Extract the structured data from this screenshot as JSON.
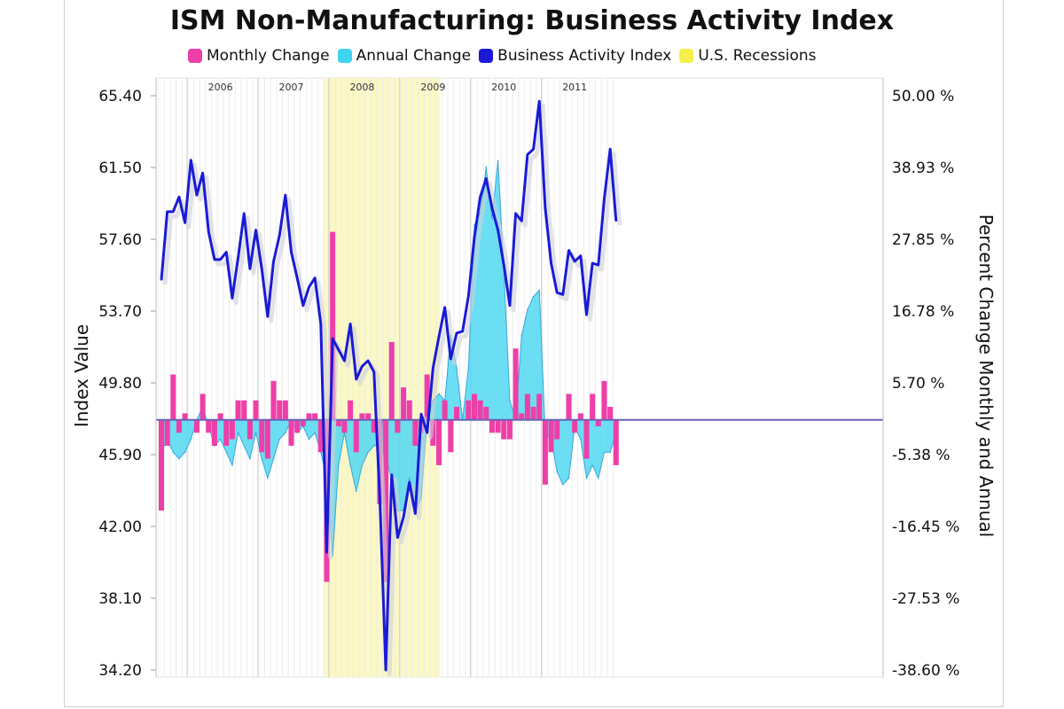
{
  "chart_data": {
    "type": "bar+area+line",
    "title": "ISM Non-Manufacturing: Business Activity Index",
    "legend": [
      {
        "name": "Monthly Change",
        "color": "#ee3fa8"
      },
      {
        "name": "Annual Change",
        "color": "#3ed4f0"
      },
      {
        "name": "Business Activity Index",
        "color": "#1a1ad6"
      },
      {
        "name": "U.S. Recessions",
        "color": "#f5f04a"
      }
    ],
    "legend_position": "top",
    "ylabel_left": "Index Value",
    "ylabel_right": "Percent Change Monthly and Annual",
    "left_axis": {
      "min": 34.2,
      "max": 65.4,
      "ticks": [
        "34.20",
        "38.10",
        "42.00",
        "45.90",
        "49.80",
        "53.70",
        "57.60",
        "61.50",
        "65.40"
      ]
    },
    "right_axis": {
      "min": -38.6,
      "max": 50.0,
      "ticks": [
        "-38.60 %",
        "-27.53 %",
        "-16.45 %",
        "-5.38 %",
        "5.70 %",
        "16.78 %",
        "27.85 %",
        "38.93 %",
        "50.00 %"
      ]
    },
    "x_start": "2005-08",
    "year_labels": [
      {
        "label": "2006",
        "month_index": 10
      },
      {
        "label": "2007",
        "month_index": 22
      },
      {
        "label": "2008",
        "month_index": 34
      },
      {
        "label": "2009",
        "month_index": 46
      },
      {
        "label": "2010",
        "month_index": 58
      },
      {
        "label": "2011",
        "month_index": 70
      }
    ],
    "recession": {
      "start_index": 28,
      "end_index": 47
    },
    "grid": true,
    "series": [
      {
        "name": "Business Activity Index",
        "axis": "left",
        "values": [
          55.4,
          59.1,
          59.1,
          59.9,
          58.5,
          61.9,
          60.0,
          61.2,
          58.0,
          56.5,
          56.5,
          56.9,
          54.4,
          56.6,
          59.0,
          56.0,
          58.1,
          56.0,
          53.4,
          56.4,
          57.8,
          60.0,
          56.9,
          55.5,
          54.0,
          55.0,
          55.5,
          53.0,
          40.6,
          52.2,
          51.6,
          51.0,
          53.0,
          50.0,
          50.7,
          51.0,
          50.4,
          43.5,
          34.2,
          44.8,
          41.4,
          42.5,
          44.4,
          42.7,
          48.1,
          47.1,
          50.6,
          52.3,
          53.9,
          51.1,
          52.5,
          52.6,
          54.5,
          57.7,
          59.9,
          60.9,
          59.3,
          58.1,
          56.2,
          54.0,
          59.0,
          58.6,
          62.2,
          62.5,
          65.1,
          59.3,
          56.3,
          54.7,
          54.6,
          57.0,
          56.4,
          56.7,
          53.5,
          56.3,
          56.2,
          59.8,
          62.5,
          58.6
        ]
      },
      {
        "name": "Monthly Change",
        "axis": "right",
        "values": [
          -14,
          -4,
          7,
          -2,
          1,
          0,
          -2,
          4,
          -2,
          -4,
          1,
          -4,
          -3,
          3,
          3,
          -3,
          3,
          -5,
          -6,
          6,
          3,
          3,
          -4,
          -2,
          -1,
          1,
          1,
          -5,
          -25,
          29,
          -1,
          -2,
          3,
          -5,
          1,
          1,
          -2,
          -13,
          -25,
          12,
          -2,
          5,
          3,
          -4,
          -2,
          7,
          -4,
          -7,
          3,
          -5,
          2,
          0,
          3,
          4,
          3,
          2,
          -2,
          -2,
          -3,
          -3,
          11,
          1,
          4,
          2,
          4,
          -10,
          -5,
          -3,
          0,
          4,
          -2,
          1,
          -6,
          4,
          -1,
          6,
          2,
          -7
        ]
      },
      {
        "name": "Annual Change",
        "axis": "right",
        "values": [
          -5,
          -3,
          -5,
          -6,
          -5,
          -3,
          0,
          2,
          -1,
          -4,
          -3,
          -5,
          -7,
          -2,
          -4,
          -6,
          -2,
          -6,
          -9,
          -6,
          -3,
          -2,
          0,
          -2,
          -1,
          -3,
          -2,
          -5,
          -9,
          -21,
          -7,
          -2,
          -7,
          -11,
          -7,
          -5,
          -4,
          -4,
          -6,
          -9,
          -14,
          -14,
          -9,
          -14,
          -12,
          0,
          3,
          4,
          3,
          13,
          8,
          0,
          8,
          30,
          32,
          39,
          31,
          40,
          23,
          3,
          0,
          13,
          17,
          19,
          20,
          -2,
          -3,
          -8,
          -10,
          -9,
          -1,
          -3,
          -9,
          -7,
          -9,
          -5,
          -5,
          -2
        ]
      }
    ]
  }
}
